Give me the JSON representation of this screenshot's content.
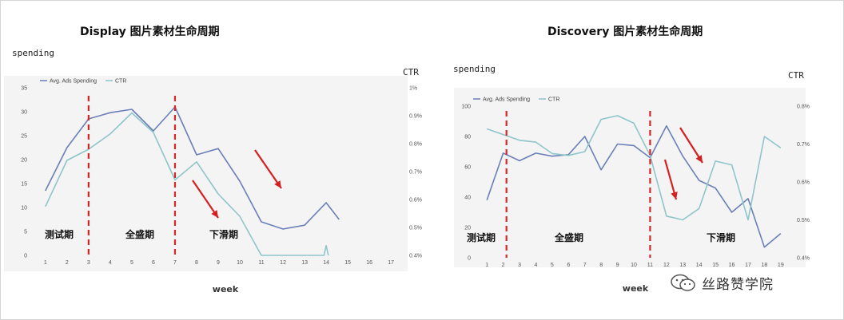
{
  "charts": [
    {
      "id": "display",
      "title": "Display 图片素材生命周期",
      "y_left_label": "spending",
      "y_right_label": "CTR",
      "xlabel": "week",
      "legend": [
        "Avg. Ads Spending",
        "CTR"
      ],
      "phases": [
        "测试期",
        "全盛期",
        "下滑期"
      ]
    },
    {
      "id": "discovery",
      "title": "Discovery 图片素材生命周期",
      "y_left_label": "spending",
      "y_right_label": "CTR",
      "xlabel": "week",
      "legend": [
        "Avg. Ads Spending",
        "CTR"
      ],
      "phases": [
        "测试期",
        "全盛期",
        "下滑期"
      ]
    }
  ],
  "watermark": "丝路赞学院",
  "colors": {
    "spending": "#6a7fb8",
    "ctr": "#8fc5c9",
    "divider": "#d62626",
    "arrow": "#d42020"
  },
  "chart_data": [
    {
      "type": "line",
      "title": "Display 图片素材生命周期",
      "xlabel": "week",
      "ylabel": "spending",
      "y2label": "CTR",
      "x": [
        1,
        2,
        3,
        4,
        5,
        6,
        7,
        8,
        9,
        10,
        11,
        12,
        13,
        14,
        15,
        16,
        17
      ],
      "ylim": [
        0,
        35
      ],
      "yticks": [
        0,
        5,
        10,
        15,
        20,
        25,
        30,
        35
      ],
      "y2lim": [
        0.4,
        1.0
      ],
      "y2ticks": [
        "0.4%",
        "0.5%",
        "0.6%",
        "0.7%",
        "0.8%",
        "0.9%",
        "1%"
      ],
      "series": [
        {
          "name": "Avg. Ads Spending",
          "axis": "left",
          "color": "#6a7fb8",
          "x": [
            1,
            2,
            3,
            4,
            5,
            6,
            7,
            8,
            9,
            10,
            11,
            12,
            13,
            14,
            14.6
          ],
          "values": [
            13.5,
            22.5,
            28.5,
            29.8,
            30.5,
            26,
            31,
            21,
            22.3,
            15.5,
            7,
            5.5,
            6.3,
            11,
            7.5
          ]
        },
        {
          "name": "CTR",
          "axis": "right",
          "color": "#8fc5c9",
          "x": [
            1,
            2,
            3,
            4,
            5,
            6,
            7,
            8,
            9,
            10,
            11,
            11.4,
            13.9,
            14,
            14.1
          ],
          "values": [
            0.575,
            0.74,
            0.78,
            0.835,
            0.91,
            0.84,
            0.67,
            0.735,
            0.62,
            0.54,
            0.4,
            0.4,
            0.4,
            0.435,
            0.4
          ]
        }
      ],
      "dividers_x": [
        3,
        7
      ],
      "grid": false,
      "legend": "top-left"
    },
    {
      "type": "line",
      "title": "Discovery 图片素材生命周期",
      "xlabel": "week",
      "ylabel": "spending",
      "y2label": "CTR",
      "x": [
        1,
        2,
        3,
        4,
        5,
        6,
        7,
        8,
        9,
        10,
        11,
        12,
        13,
        14,
        15,
        16,
        17,
        18,
        19
      ],
      "ylim": [
        0,
        100
      ],
      "yticks": [
        0,
        20,
        40,
        60,
        80,
        100
      ],
      "y2lim": [
        0.4,
        0.8
      ],
      "y2ticks": [
        "0.4%",
        "0.5%",
        "0.6%",
        "0.7%",
        "0.8%"
      ],
      "series": [
        {
          "name": "Avg. Ads Spending",
          "axis": "left",
          "color": "#6a7fb8",
          "values": [
            38,
            69,
            64,
            69,
            67,
            68,
            80,
            58,
            75,
            74,
            66,
            87,
            67,
            51,
            46,
            30,
            39,
            7,
            16
          ]
        },
        {
          "name": "CTR",
          "axis": "right",
          "color": "#8fc5c9",
          "values": [
            0.74,
            0.725,
            0.71,
            0.705,
            0.675,
            0.67,
            0.68,
            0.765,
            0.775,
            0.755,
            0.67,
            0.51,
            0.5,
            0.53,
            0.655,
            0.645,
            0.5,
            0.72,
            0.69
          ]
        }
      ],
      "dividers_x": [
        2.2,
        11
      ],
      "grid": false,
      "legend": "top-left"
    }
  ]
}
